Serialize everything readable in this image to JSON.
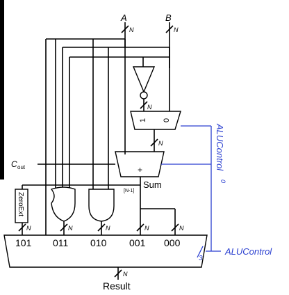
{
  "labels": {
    "input_a": "A",
    "input_b": "B",
    "bus_width": "N",
    "cout": "C",
    "cout_sub": "out",
    "sum": "Sum",
    "sum_bit": "[N-1]",
    "zeroext": "ZeroExt",
    "mux_in_0": "0",
    "mux_in_1": "1",
    "adder_op": "+",
    "alucontrol_bit": "ALUControl",
    "alucontrol_bit_sub": "0",
    "alucontrol": "ALUControl",
    "control_width": "3",
    "result": "Result"
  },
  "mux_inputs": [
    "101",
    "011",
    "010",
    "001",
    "000"
  ],
  "colors": {
    "wire": "#000000",
    "control": "#2a3fd0",
    "left_edge_bar": "#000000"
  }
}
